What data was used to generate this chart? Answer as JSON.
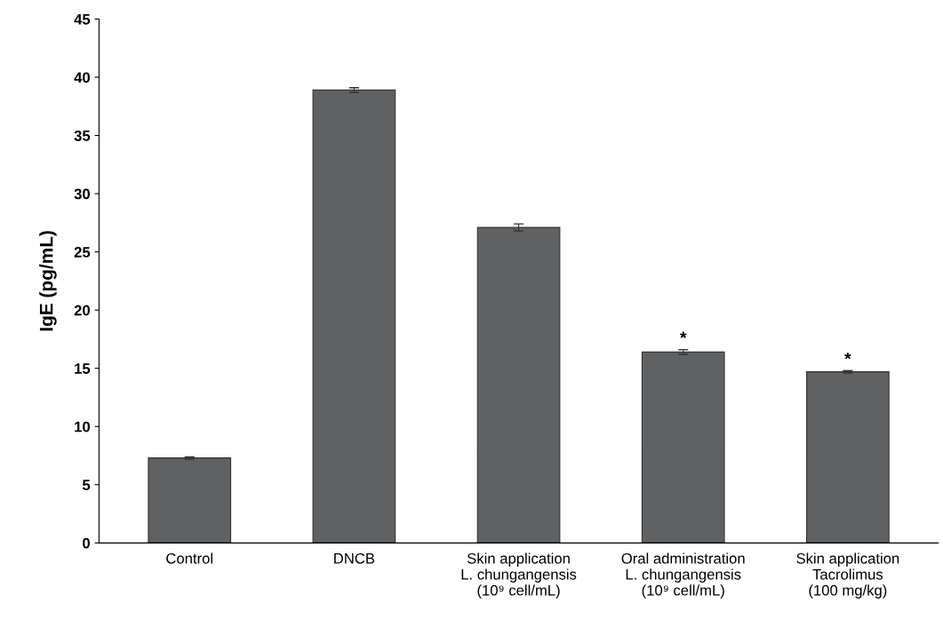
{
  "chart_data": {
    "type": "bar",
    "ylabel": "IgE (pg/mL)",
    "categories": [
      "Control",
      "DNCB",
      "Skin application\nL. chungangensis\n(10⁹ cell/mL)",
      "Oral administration\nL. chungangensis\n(10⁹ cell/mL)",
      "Skin application\nTacrolimus\n(100 mg/kg)"
    ],
    "values": [
      7.3,
      38.9,
      27.1,
      16.4,
      14.7
    ],
    "errors": [
      0.1,
      0.2,
      0.3,
      0.2,
      0.1
    ],
    "color": "#5f6163",
    "ylim": [
      0,
      45
    ],
    "yticks": [
      0,
      5,
      10,
      15,
      20,
      25,
      30,
      35,
      40,
      45
    ],
    "annotations": [
      {
        "text": "*",
        "x": "Oral administration\nL. chungangensis\n(10⁹ cell/mL)",
        "y": 16.6
      },
      {
        "text": "*",
        "x": "Skin application\nTacrolimus\n(100 mg/kg)",
        "y": 14.8
      }
    ],
    "grid": false
  }
}
